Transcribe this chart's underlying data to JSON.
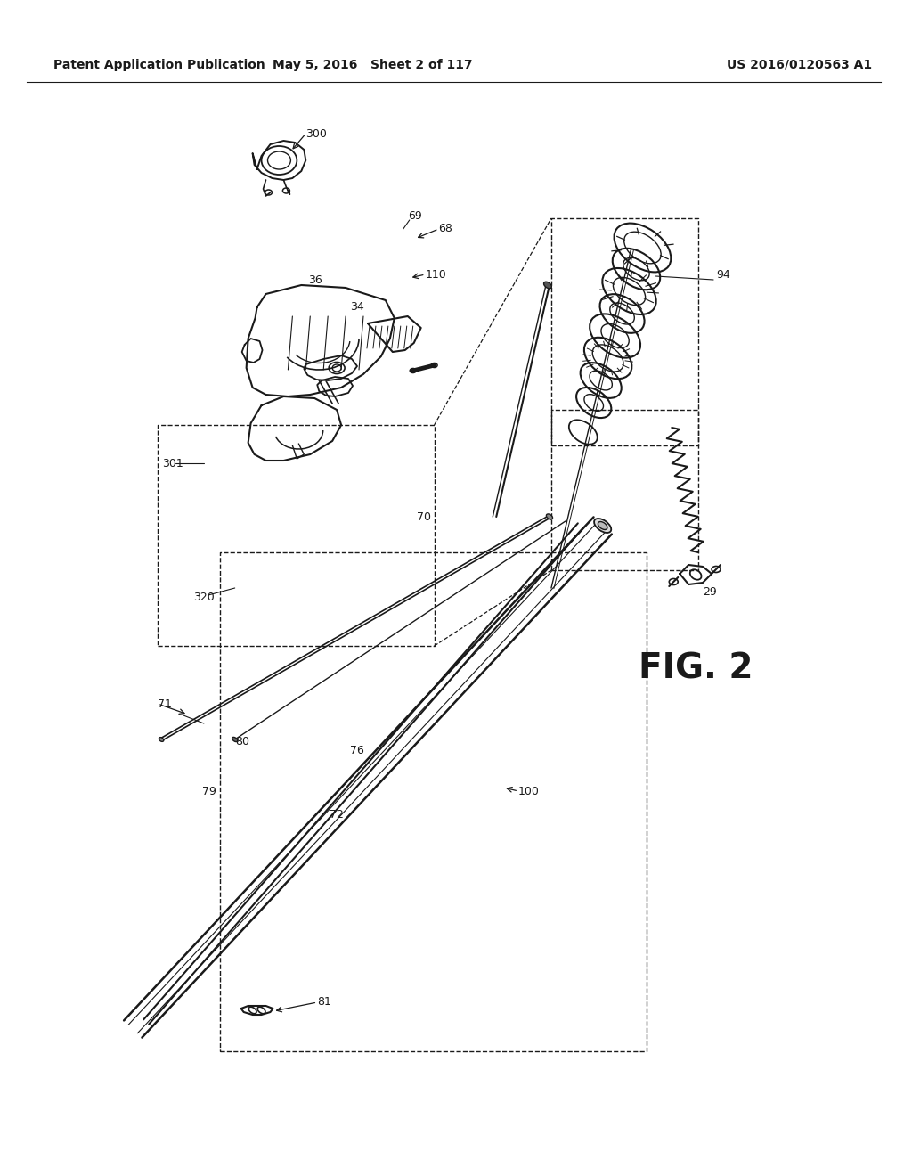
{
  "bg_color": "#ffffff",
  "header_left": "Patent Application Publication",
  "header_center": "May 5, 2016   Sheet 2 of 117",
  "header_right": "US 2016/0120563 A1",
  "line_color": "#1a1a1a",
  "text_color": "#1a1a1a"
}
